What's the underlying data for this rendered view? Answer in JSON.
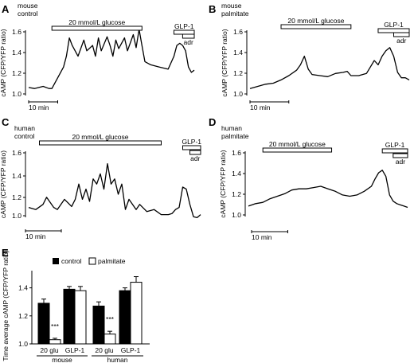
{
  "chart_data": [
    {
      "panel": "A",
      "type": "line",
      "label_lines": [
        "mouse",
        "control"
      ],
      "ylabel": "cAMP (CFP/YFP ratio)",
      "yticks": [
        "1.6",
        "1.4",
        "1.2",
        "1.0"
      ],
      "ylim": [
        0.95,
        1.6
      ],
      "scale_bar": "10 min",
      "stimuli": [
        {
          "label": "20 mmol/L glucose",
          "start": 8,
          "end": 39
        },
        {
          "label": "GLP-1",
          "start": 50,
          "end": 57
        },
        {
          "label": "adr",
          "start": 53,
          "end": 57
        }
      ],
      "x": [
        0,
        2,
        5,
        7,
        8,
        10,
        12,
        13,
        14,
        15,
        17,
        19,
        20,
        22,
        23,
        24,
        25,
        27,
        28,
        29,
        30,
        31,
        33,
        34,
        36,
        37,
        38,
        39,
        40,
        42,
        45,
        48,
        50,
        51,
        52,
        53,
        54,
        55,
        56,
        57
      ],
      "y": [
        1.01,
        1.0,
        1.02,
        1.0,
        1.0,
        1.1,
        1.2,
        1.3,
        1.47,
        1.4,
        1.3,
        1.45,
        1.35,
        1.4,
        1.3,
        1.47,
        1.35,
        1.48,
        1.4,
        1.3,
        1.45,
        1.37,
        1.47,
        1.35,
        1.5,
        1.38,
        1.55,
        1.4,
        1.25,
        1.22,
        1.2,
        1.18,
        1.3,
        1.4,
        1.42,
        1.4,
        1.35,
        1.2,
        1.15,
        1.17
      ]
    },
    {
      "panel": "B",
      "type": "line",
      "label_lines": [
        "mouse",
        "palmitate"
      ],
      "ylabel": "cAMP (CFP/YFP ratio)",
      "yticks": [
        "1.6",
        "1.4",
        "1.2",
        "1.0"
      ],
      "ylim": [
        0.95,
        1.6
      ],
      "scale_bar": "10 min",
      "stimuli": [
        {
          "label": "20 mmol/L glucose",
          "start": 8,
          "end": 26
        },
        {
          "label": "GLP-1",
          "start": 33,
          "end": 41
        },
        {
          "label": "adr",
          "start": 37,
          "end": 41
        }
      ],
      "x": [
        0,
        2,
        4,
        6,
        8,
        10,
        12,
        13,
        14,
        15,
        16,
        18,
        20,
        22,
        24,
        25,
        26,
        28,
        30,
        31,
        32,
        33,
        34,
        35,
        36,
        37,
        38,
        39,
        40,
        41
      ],
      "y": [
        1.0,
        1.02,
        1.04,
        1.05,
        1.08,
        1.12,
        1.17,
        1.22,
        1.3,
        1.18,
        1.13,
        1.12,
        1.11,
        1.14,
        1.15,
        1.16,
        1.12,
        1.12,
        1.14,
        1.2,
        1.26,
        1.22,
        1.3,
        1.35,
        1.38,
        1.3,
        1.15,
        1.1,
        1.1,
        1.08
      ]
    },
    {
      "panel": "C",
      "type": "line",
      "label_lines": [
        "human",
        "control"
      ],
      "ylabel": "cAMP (CFP/YFP ratio)",
      "yticks": [
        "1.6",
        "1.4",
        "1.2",
        "1.0"
      ],
      "ylim": [
        0.9,
        1.65
      ],
      "scale_bar": "10 min",
      "stimuli": [
        {
          "label": "20 mmol/L glucose",
          "start": 3,
          "end": 37
        },
        {
          "label": "GLP-1",
          "start": 43,
          "end": 48
        },
        {
          "label": "adr",
          "start": 45,
          "end": 48
        }
      ],
      "x": [
        0,
        2,
        4,
        5,
        7,
        8,
        10,
        12,
        13,
        14,
        15,
        16,
        17,
        18,
        19,
        20,
        21,
        22,
        23,
        24,
        25,
        26,
        27,
        28,
        30,
        31,
        33,
        35,
        37,
        39,
        40,
        41,
        42,
        43,
        44,
        45,
        46,
        47,
        48
      ],
      "y": [
        1.02,
        1.0,
        1.05,
        1.12,
        1.02,
        1.0,
        1.1,
        1.03,
        1.1,
        1.25,
        1.1,
        1.2,
        1.08,
        1.3,
        1.25,
        1.35,
        1.2,
        1.45,
        1.25,
        1.3,
        1.15,
        1.25,
        1.0,
        1.1,
        1.0,
        1.05,
        0.98,
        1.0,
        0.95,
        0.95,
        0.96,
        1.0,
        1.02,
        1.22,
        1.2,
        1.05,
        0.93,
        0.92,
        0.95
      ]
    },
    {
      "panel": "D",
      "type": "line",
      "label_lines": [
        "human",
        "palmitate"
      ],
      "ylabel": "cAMP (CFP/YFP ratio)",
      "yticks": [
        "1.6",
        "1.4",
        "1.2",
        "1.0"
      ],
      "ylim": [
        0.95,
        1.6
      ],
      "scale_bar": "10 min",
      "stimuli": [
        {
          "label": "20 mmol/L glucose",
          "start": 4,
          "end": 23
        },
        {
          "label": "GLP-1",
          "start": 37,
          "end": 44
        },
        {
          "label": "adr",
          "start": 40,
          "end": 44
        }
      ],
      "x": [
        0,
        2,
        4,
        6,
        8,
        10,
        12,
        14,
        16,
        18,
        20,
        22,
        24,
        26,
        28,
        30,
        32,
        34,
        35,
        36,
        37,
        38,
        39,
        40,
        41,
        42,
        43,
        44
      ],
      "y": [
        1.06,
        1.08,
        1.09,
        1.12,
        1.14,
        1.16,
        1.19,
        1.2,
        1.2,
        1.21,
        1.22,
        1.2,
        1.18,
        1.15,
        1.14,
        1.15,
        1.18,
        1.22,
        1.28,
        1.33,
        1.35,
        1.3,
        1.15,
        1.1,
        1.08,
        1.07,
        1.06,
        1.05
      ]
    },
    {
      "panel": "E",
      "type": "bar",
      "ylabel": "Time average cAMP (CFP/YFP ratio)",
      "yticks": [
        "1.4",
        "1.2",
        "1.0"
      ],
      "ylim": [
        1.0,
        1.5
      ],
      "legend": [
        "control",
        "palmitate"
      ],
      "groups": [
        {
          "name": "mouse",
          "categories": [
            "20 glu",
            "GLP-1"
          ],
          "control": [
            1.29,
            1.39
          ],
          "palmitate": [
            1.03,
            1.38
          ],
          "control_err": [
            0.03,
            0.02
          ],
          "palmitate_err": [
            0.01,
            0.03
          ],
          "annotations": [
            "***",
            ""
          ]
        },
        {
          "name": "human",
          "categories": [
            "20 glu",
            "GLP-1"
          ],
          "control": [
            1.27,
            1.38
          ],
          "palmitate": [
            1.07,
            1.44
          ],
          "control_err": [
            0.03,
            0.02
          ],
          "palmitate_err": [
            0.02,
            0.04
          ],
          "annotations": [
            "***",
            ""
          ]
        }
      ]
    }
  ]
}
